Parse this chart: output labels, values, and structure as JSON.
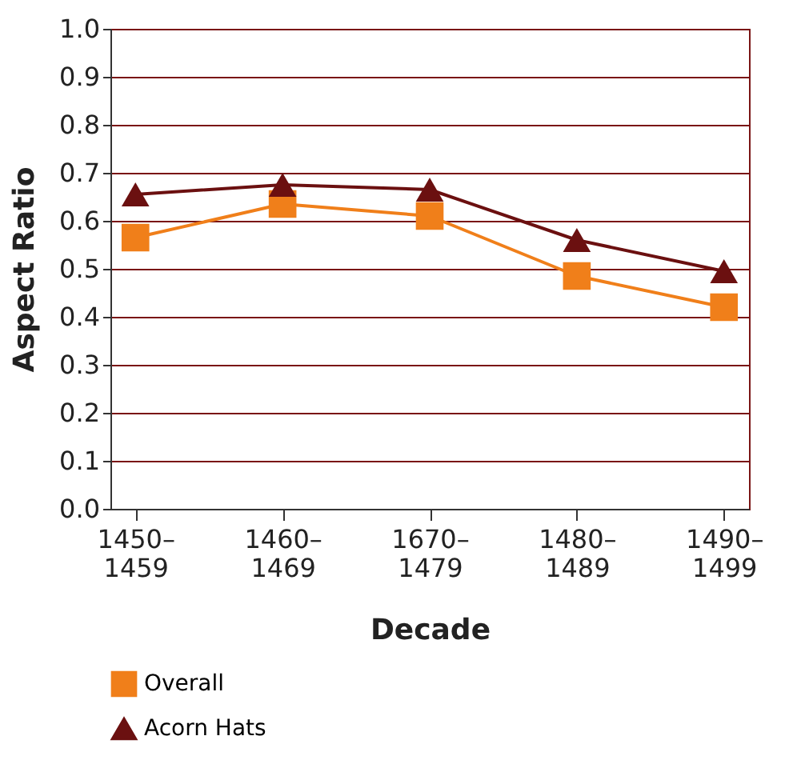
{
  "chart_data": {
    "type": "line",
    "xlabel": "Decade",
    "ylabel": "Aspect Ratio",
    "categories": [
      "1450–1459",
      "1460–1469",
      "1670–1479",
      "1480–1489",
      "1490–1499"
    ],
    "series": [
      {
        "name": "Overall",
        "color": "#f07f1a",
        "marker": "square",
        "values": [
          0.565,
          0.635,
          0.61,
          0.485,
          0.42
        ]
      },
      {
        "name": "Acorn Hats",
        "color": "#6b1010",
        "marker": "triangle",
        "values": [
          0.655,
          0.675,
          0.665,
          0.56,
          0.495
        ]
      }
    ],
    "ylim": [
      0,
      1
    ],
    "yticks": [
      {
        "value": 0,
        "label": "0.0"
      },
      0.1,
      0.2,
      0.3,
      0.4,
      0.5,
      0.6,
      0.7,
      0.8,
      0.9,
      {
        "value": 1,
        "label": "1.0"
      }
    ],
    "grid": "y",
    "legend": "bottom left"
  }
}
